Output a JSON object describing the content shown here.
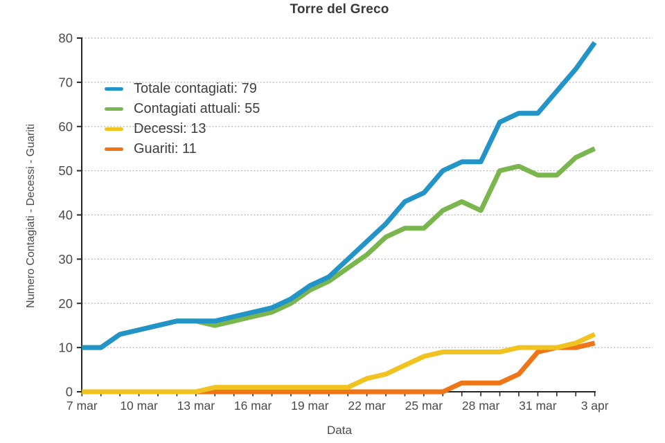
{
  "chart_data": {
    "type": "line",
    "title": "Torre del Greco",
    "xlabel": "Data",
    "ylabel": "Numero Contagiati - Decessi - Guariti",
    "ylim": [
      0,
      80
    ],
    "ytick_step": 10,
    "yticks": [
      0,
      10,
      20,
      30,
      40,
      50,
      60,
      70,
      80
    ],
    "grid": "horizontal-dotted",
    "legend_position": "upper-left-inside",
    "x_tick_every": 3,
    "x_tick_labels": [
      "7 mar",
      "10 mar",
      "13 mar",
      "16 mar",
      "19 mar",
      "22 mar",
      "25 mar",
      "28 mar",
      "31 mar",
      "3 apr"
    ],
    "x_labels": [
      "7 mar",
      "8 mar",
      "9 mar",
      "10 mar",
      "11 mar",
      "12 mar",
      "13 mar",
      "14 mar",
      "15 mar",
      "16 mar",
      "17 mar",
      "18 mar",
      "19 mar",
      "20 mar",
      "21 mar",
      "22 mar",
      "23 mar",
      "24 mar",
      "25 mar",
      "26 mar",
      "27 mar",
      "28 mar",
      "29 mar",
      "30 mar",
      "31 mar",
      "1 apr",
      "2 apr",
      "3 apr"
    ],
    "series": [
      {
        "name": "Totale contagiati",
        "legend_label": "Totale contagiati: 79",
        "final_value": 79,
        "color": "#2394c7",
        "values": [
          10,
          10,
          13,
          14,
          15,
          16,
          16,
          16,
          17,
          18,
          19,
          21,
          24,
          26,
          30,
          34,
          38,
          43,
          45,
          50,
          52,
          52,
          61,
          63,
          63,
          68,
          73,
          79
        ]
      },
      {
        "name": "Contagiati attuali",
        "legend_label": "Contagiati attuali: 55",
        "final_value": 55,
        "color": "#7ab54e",
        "values": [
          10,
          10,
          13,
          14,
          15,
          16,
          16,
          15,
          16,
          17,
          18,
          20,
          23,
          25,
          28,
          31,
          35,
          37,
          37,
          41,
          43,
          41,
          50,
          51,
          49,
          49,
          53,
          55
        ]
      },
      {
        "name": "Decessi",
        "legend_label": "Decessi: 13",
        "final_value": 13,
        "color": "#f0c320",
        "values": [
          0,
          0,
          0,
          0,
          0,
          0,
          0,
          1,
          1,
          1,
          1,
          1,
          1,
          1,
          1,
          3,
          4,
          6,
          8,
          9,
          9,
          9,
          9,
          10,
          10,
          10,
          11,
          13
        ]
      },
      {
        "name": "Guariti",
        "legend_label": "Guariti: 11",
        "final_value": 11,
        "color": "#ee7518",
        "values": [
          0,
          0,
          0,
          0,
          0,
          0,
          0,
          0,
          0,
          0,
          0,
          0,
          0,
          0,
          0,
          0,
          0,
          0,
          0,
          0,
          2,
          2,
          2,
          4,
          9,
          10,
          10,
          11
        ]
      }
    ]
  },
  "colors": {
    "background": "#ffffff",
    "grid": "#b0b0b0",
    "axis": "#262626",
    "tick_text": "#4a4a4a",
    "legend_text": "#3d3d3d"
  }
}
